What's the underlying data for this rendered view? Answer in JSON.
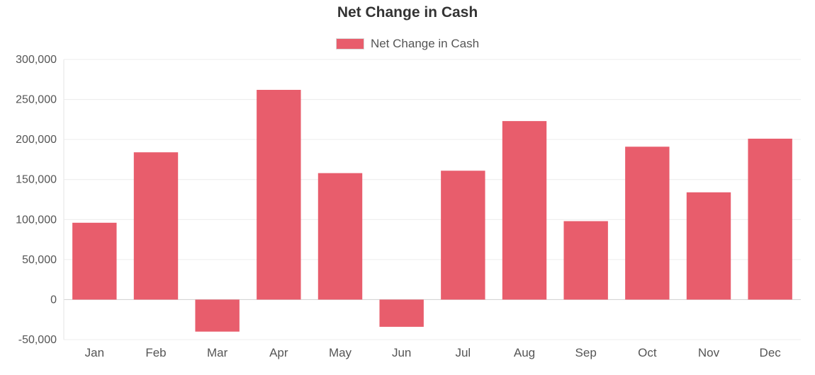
{
  "chart_data": {
    "type": "bar",
    "title": "Net Change in Cash",
    "categories": [
      "Jan",
      "Feb",
      "Mar",
      "Apr",
      "May",
      "Jun",
      "Jul",
      "Aug",
      "Sep",
      "Oct",
      "Nov",
      "Dec"
    ],
    "series": [
      {
        "name": "Net Change in Cash",
        "color": "#e85d6c",
        "values": [
          96000,
          184000,
          -40000,
          262000,
          158000,
          -34000,
          161000,
          223000,
          98000,
          191000,
          134000,
          201000
        ]
      }
    ],
    "xlabel": "",
    "ylabel": "",
    "ylim": [
      -50000,
      300000
    ],
    "yticks": [
      {
        "value": 300000,
        "label": "300,000"
      },
      {
        "value": 250000,
        "label": "250,000"
      },
      {
        "value": 200000,
        "label": "200,000"
      },
      {
        "value": 150000,
        "label": "150,000"
      },
      {
        "value": 100000,
        "label": "100,000"
      },
      {
        "value": 50000,
        "label": "50,000"
      },
      {
        "value": 0,
        "label": "0"
      },
      {
        "value": -50000,
        "label": "-50,000"
      }
    ],
    "grid": true,
    "legend_position": "top-center"
  }
}
